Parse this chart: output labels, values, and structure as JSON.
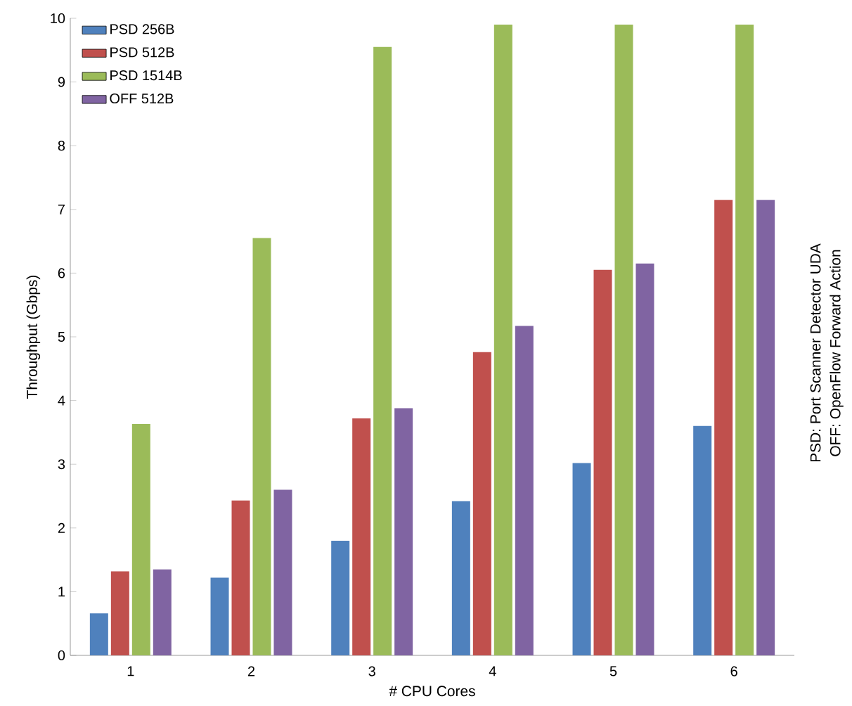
{
  "chart_data": {
    "type": "bar",
    "xlabel": "# CPU Cores",
    "ylabel": "Throughput (Gbps)",
    "categories": [
      "1",
      "2",
      "3",
      "4",
      "5",
      "6"
    ],
    "series": [
      {
        "name": "PSD 256B",
        "color": "#4f81bd",
        "values": [
          0.66,
          1.22,
          1.8,
          2.42,
          3.02,
          3.6
        ]
      },
      {
        "name": "PSD 512B",
        "color": "#c0504d",
        "values": [
          1.32,
          2.43,
          3.72,
          4.76,
          6.05,
          7.15
        ]
      },
      {
        "name": "PSD 1514B",
        "color": "#9bbb59",
        "values": [
          3.63,
          6.55,
          9.55,
          9.9,
          9.9,
          9.9
        ]
      },
      {
        "name": "OFF 512B",
        "color": "#8064a2",
        "values": [
          1.35,
          2.6,
          3.88,
          5.17,
          6.15,
          7.15
        ]
      }
    ],
    "ylim": [
      0,
      10
    ],
    "yticks": [
      0,
      1,
      2,
      3,
      4,
      5,
      6,
      7,
      8,
      9,
      10
    ],
    "grid": false,
    "legend": "top left",
    "annotations": [
      "PSD: Port Scanner Detector UDA",
      "OFF: OpenFlow Forward Action"
    ]
  }
}
